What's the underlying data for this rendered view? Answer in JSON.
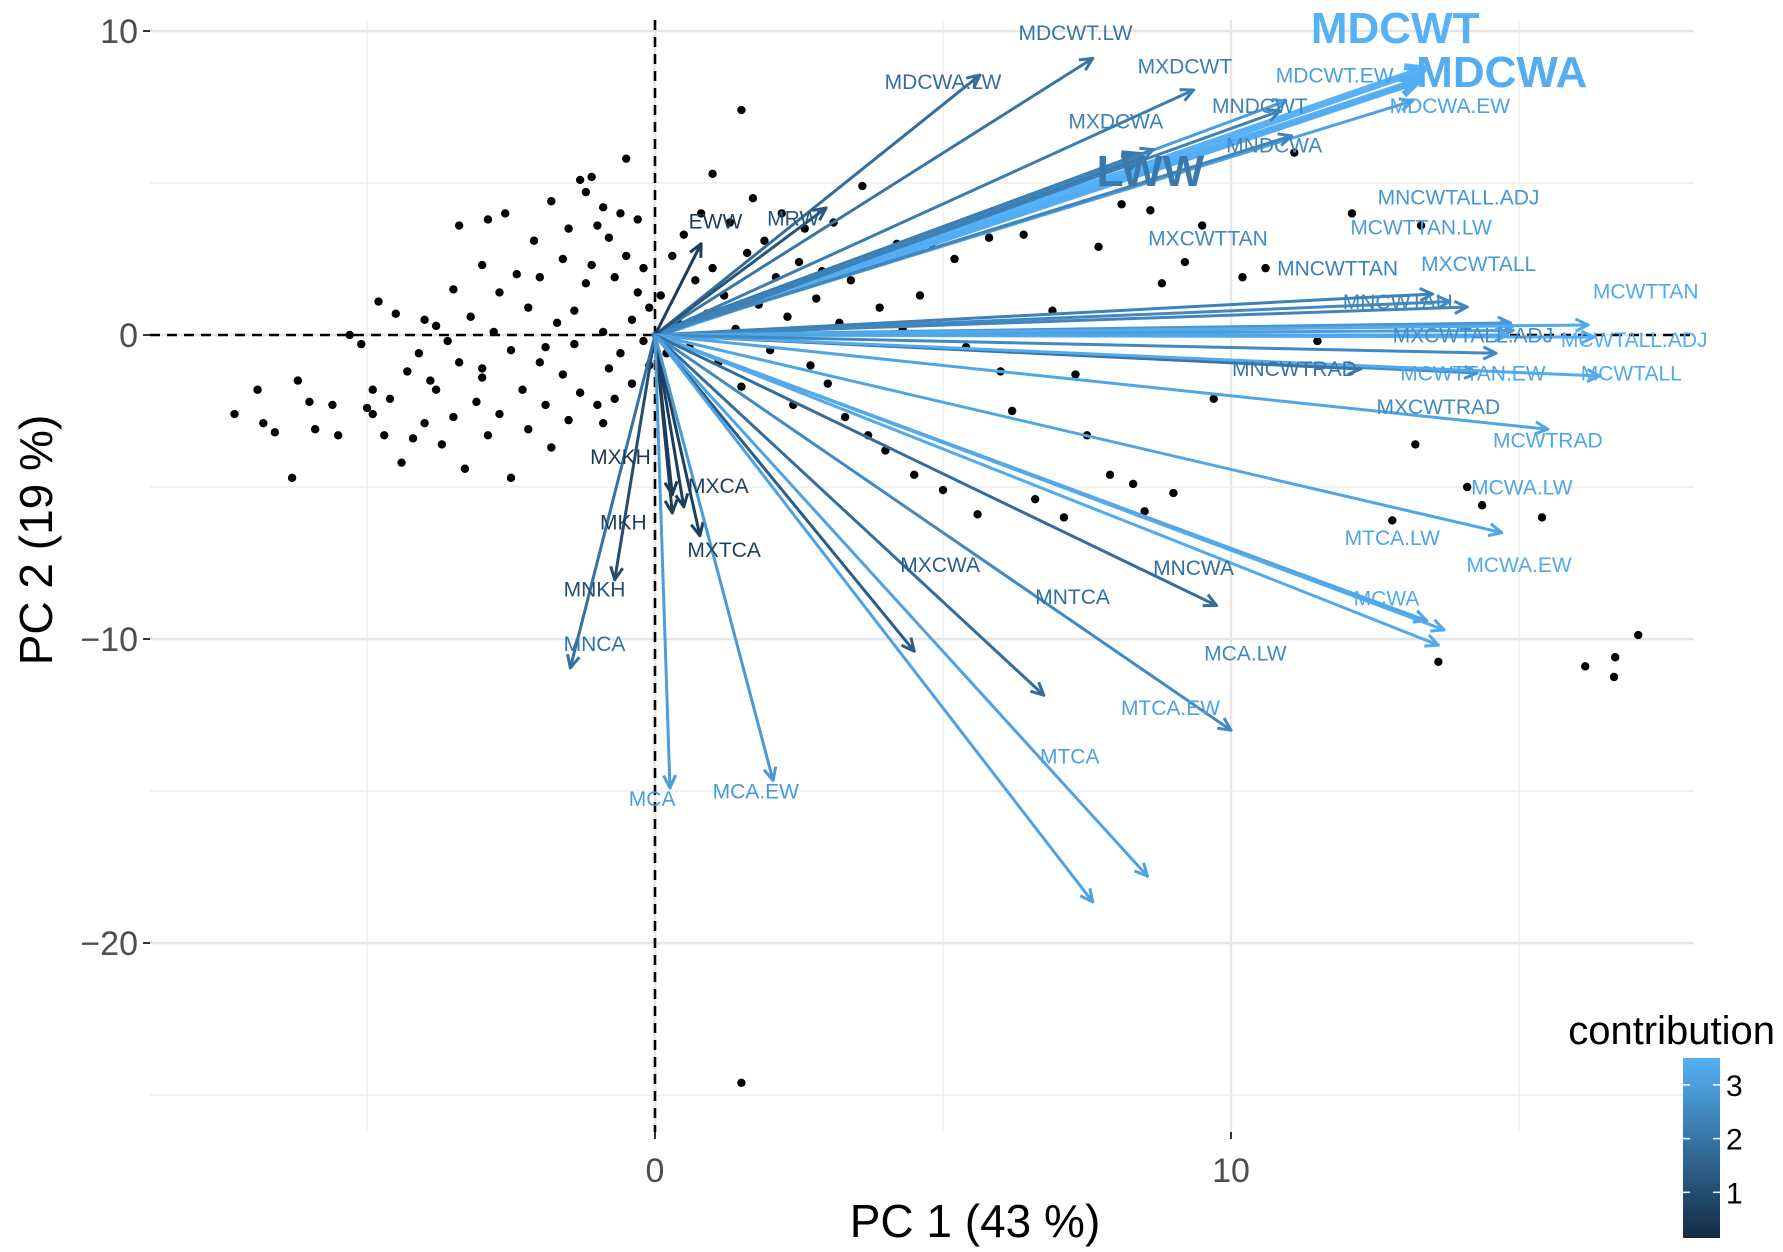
{
  "chart_data": {
    "type": "scatter",
    "subtype": "pca-biplot",
    "title": "",
    "xlabel": "PC 1 (43 %)",
    "ylabel": "PC 2 (19 %)",
    "xlim": [
      -9.5,
      17.6
    ],
    "ylim": [
      -27,
      10.2
    ],
    "xticks": [
      0,
      10
    ],
    "xgrid_minor": [
      -5,
      5,
      15
    ],
    "yticks": [
      -20,
      -10,
      0,
      10
    ],
    "ygrid_minor": [
      -25,
      -15,
      -5,
      5
    ],
    "grid": true,
    "reference_lines": {
      "x": 0,
      "y": 0,
      "style": "dashed"
    },
    "legend": {
      "title": "contribution",
      "placement": "bottom-right",
      "type": "colorbar",
      "range": [
        0.15,
        3.5
      ],
      "ticks": [
        1,
        2,
        3
      ],
      "color_low": "#132B43",
      "color_high": "#56B1F7"
    },
    "variables": [
      {
        "name": "MDCWT",
        "x": 13.35,
        "y": 8.75,
        "contribution": 3.5,
        "big": true
      },
      {
        "name": "MDCWA",
        "x": 13.25,
        "y": 8.36,
        "contribution": 3.4,
        "big": true
      },
      {
        "name": "LWW",
        "x": 8.44,
        "y": 5.9,
        "contribution": 2.1,
        "big": true
      },
      {
        "name": "MDCWT.EW",
        "x": 10.95,
        "y": 7.7,
        "contribution": 3.0
      },
      {
        "name": "MDCWA.EW",
        "x": 13.15,
        "y": 7.7,
        "contribution": 3.1
      },
      {
        "name": "MDCWT.LW",
        "x": 7.6,
        "y": 9.1,
        "contribution": 2.0
      },
      {
        "name": "MDCWA.LW",
        "x": 5.64,
        "y": 8.55,
        "contribution": 1.8
      },
      {
        "name": "MXDCWT",
        "x": 9.35,
        "y": 8.06,
        "contribution": 2.2
      },
      {
        "name": "MXDCWA",
        "x": 8.65,
        "y": 6.1,
        "contribution": 2.3
      },
      {
        "name": "MNDCWT",
        "x": 10.85,
        "y": 7.37,
        "contribution": 2.3
      },
      {
        "name": "MNDCWA",
        "x": 11.05,
        "y": 6.55,
        "contribution": 2.4
      },
      {
        "name": "MRW",
        "x": 2.97,
        "y": 4.18,
        "contribution": 1.2
      },
      {
        "name": "EWW",
        "x": 0.8,
        "y": 3.0,
        "contribution": 0.6
      },
      {
        "name": "MNCWTALL.ADJ",
        "x": 14.85,
        "y": 0.4,
        "contribution": 2.8
      },
      {
        "name": "MCWTTAN.LW",
        "x": 14.9,
        "y": 0.15,
        "contribution": 3.0
      },
      {
        "name": "MXCWTTAN",
        "x": 13.8,
        "y": 1.1,
        "contribution": 2.5
      },
      {
        "name": "MNCWTTAN",
        "x": 13.5,
        "y": 1.35,
        "contribution": 2.3
      },
      {
        "name": "MXCWTALL",
        "x": 14.9,
        "y": 0.3,
        "contribution": 2.9
      },
      {
        "name": "MNCWTALL",
        "x": 14.1,
        "y": 0.92,
        "contribution": 2.4
      },
      {
        "name": "MCWTTAN",
        "x": 16.2,
        "y": 0.33,
        "contribution": 3.3
      },
      {
        "name": "MXCWTALL.ADJ",
        "x": 14.27,
        "y": -1.25,
        "contribution": 2.6
      },
      {
        "name": "MCWTALL.ADJ",
        "x": 16.3,
        "y": -0.07,
        "contribution": 3.4
      },
      {
        "name": "MNCWTRAD",
        "x": 12.25,
        "y": -1.12,
        "contribution": 2.0
      },
      {
        "name": "MCWTTAN.EW",
        "x": 14.8,
        "y": 0.0,
        "contribution": 3.2
      },
      {
        "name": "MCWTALL",
        "x": 16.4,
        "y": -1.35,
        "contribution": 3.3
      },
      {
        "name": "MXCWTRAD",
        "x": 14.6,
        "y": -0.6,
        "contribution": 2.5
      },
      {
        "name": "MCWTRAD",
        "x": 15.5,
        "y": -3.1,
        "contribution": 3.2
      },
      {
        "name": "MCWA.LW",
        "x": 14.7,
        "y": -6.5,
        "contribution": 3.2
      },
      {
        "name": "MTCA.LW",
        "x": 13.4,
        "y": -9.4,
        "contribution": 3.2
      },
      {
        "name": "MCWA.EW",
        "x": 13.7,
        "y": -9.7,
        "contribution": 3.3
      },
      {
        "name": "MCWA",
        "x": 13.6,
        "y": -10.2,
        "contribution": 3.3
      },
      {
        "name": "MNCWA",
        "x": 9.75,
        "y": -8.9,
        "contribution": 1.8
      },
      {
        "name": "MXCWA",
        "x": 4.5,
        "y": -10.4,
        "contribution": 1.4
      },
      {
        "name": "MNTCA",
        "x": 6.75,
        "y": -11.85,
        "contribution": 1.8
      },
      {
        "name": "MCA.LW",
        "x": 10.0,
        "y": -13.0,
        "contribution": 2.5
      },
      {
        "name": "MTCA.EW",
        "x": 8.55,
        "y": -17.8,
        "contribution": 3.1
      },
      {
        "name": "MTCA",
        "x": 7.6,
        "y": -18.65,
        "contribution": 3.1
      },
      {
        "name": "MXKH",
        "x": 0.3,
        "y": -5.25,
        "contribution": 0.5
      },
      {
        "name": "MXCA",
        "x": 0.5,
        "y": -5.65,
        "contribution": 0.6
      },
      {
        "name": "MKH",
        "x": 0.3,
        "y": -5.85,
        "contribution": 0.6
      },
      {
        "name": "MXTCA",
        "x": 0.78,
        "y": -6.6,
        "contribution": 0.7
      },
      {
        "name": "MNKH",
        "x": -0.7,
        "y": -8.05,
        "contribution": 1.0
      },
      {
        "name": "MNCA",
        "x": -1.47,
        "y": -10.95,
        "contribution": 1.9
      },
      {
        "name": "MCA",
        "x": 0.26,
        "y": -14.9,
        "contribution": 3.0
      },
      {
        "name": "MCA.EW",
        "x": 2.05,
        "y": -14.65,
        "contribution": 2.9
      }
    ],
    "labels": [
      {
        "name": "MDCWT",
        "x": 12.85,
        "y": 9.6
      },
      {
        "name": "MDCWA",
        "x": 14.7,
        "y": 8.15
      },
      {
        "name": "LWW",
        "x": 8.6,
        "y": 4.9
      },
      {
        "name": "MDCWT.EW",
        "x": 11.8,
        "y": 8.3
      },
      {
        "name": "MDCWA.EW",
        "x": 13.8,
        "y": 7.3
      },
      {
        "name": "MDCWT.LW",
        "x": 7.3,
        "y": 9.7
      },
      {
        "name": "MDCWA.LW",
        "x": 5.0,
        "y": 8.1
      },
      {
        "name": "MXDCWT",
        "x": 9.2,
        "y": 8.6
      },
      {
        "name": "MXDCWA",
        "x": 8.0,
        "y": 6.8
      },
      {
        "name": "MNDCWT",
        "x": 10.5,
        "y": 7.3
      },
      {
        "name": "MNDCWA",
        "x": 10.75,
        "y": 6.0
      },
      {
        "name": "MRW",
        "x": 2.4,
        "y": 3.6
      },
      {
        "name": "EWW",
        "x": 1.05,
        "y": 3.5
      },
      {
        "name": "MNCWTALL.ADJ",
        "x": 13.95,
        "y": 4.3
      },
      {
        "name": "MCWTTAN.LW",
        "x": 13.3,
        "y": 3.3
      },
      {
        "name": "MXCWTTAN",
        "x": 9.6,
        "y": 2.95
      },
      {
        "name": "MNCWTTAN",
        "x": 11.85,
        "y": 1.95
      },
      {
        "name": "MXCWTALL",
        "x": 14.3,
        "y": 2.1
      },
      {
        "name": "MNCWTALL",
        "x": 12.95,
        "y": 0.85
      },
      {
        "name": "MCWTTAN",
        "x": 17.2,
        "y": 1.2
      },
      {
        "name": "MXCWTALL.ADJ",
        "x": 14.2,
        "y": -0.25
      },
      {
        "name": "MCWTALL.ADJ",
        "x": 17.0,
        "y": -0.4
      },
      {
        "name": "MNCWTRAD",
        "x": 11.1,
        "y": -1.35
      },
      {
        "name": "MCWTTAN.EW",
        "x": 14.2,
        "y": -1.5
      },
      {
        "name": "MCWTALL",
        "x": 16.95,
        "y": -1.5
      },
      {
        "name": "MXCWTRAD",
        "x": 13.6,
        "y": -2.6
      },
      {
        "name": "MCWTRAD",
        "x": 15.5,
        "y": -3.7
      },
      {
        "name": "MCWA.LW",
        "x": 15.05,
        "y": -5.25
      },
      {
        "name": "MTCA.LW",
        "x": 12.8,
        "y": -6.9
      },
      {
        "name": "MCWA.EW",
        "x": 15.0,
        "y": -7.8
      },
      {
        "name": "MCWA",
        "x": 12.7,
        "y": -8.9
      },
      {
        "name": "MNCWA",
        "x": 9.35,
        "y": -7.9
      },
      {
        "name": "MXCWA",
        "x": 4.95,
        "y": -7.8
      },
      {
        "name": "MNTCA",
        "x": 7.25,
        "y": -8.85
      },
      {
        "name": "MCA.LW",
        "x": 10.25,
        "y": -10.7
      },
      {
        "name": "MTCA.EW",
        "x": 8.95,
        "y": -12.5
      },
      {
        "name": "MTCA",
        "x": 7.2,
        "y": -14.1
      },
      {
        "name": "MXKH",
        "x": -0.6,
        "y": -4.25
      },
      {
        "name": "MXCA",
        "x": 1.1,
        "y": -5.2
      },
      {
        "name": "MKH",
        "x": -0.55,
        "y": -6.4
      },
      {
        "name": "MXTCA",
        "x": 1.2,
        "y": -7.3
      },
      {
        "name": "MNKH",
        "x": -1.05,
        "y": -8.6
      },
      {
        "name": "MNCA",
        "x": -1.05,
        "y": -10.4
      },
      {
        "name": "MCA",
        "x": -0.05,
        "y": -15.5
      },
      {
        "name": "MCA.EW",
        "x": 1.75,
        "y": -15.25
      }
    ],
    "points": [
      [
        -7.3,
        -2.6
      ],
      [
        -6.9,
        -1.8
      ],
      [
        -6.8,
        -2.9
      ],
      [
        -6.6,
        -3.2
      ],
      [
        -6.3,
        -4.7
      ],
      [
        -6.2,
        -1.5
      ],
      [
        -6.0,
        -2.2
      ],
      [
        -5.9,
        -3.1
      ],
      [
        -5.6,
        -2.3
      ],
      [
        -5.5,
        -3.3
      ],
      [
        -5.3,
        0.0
      ],
      [
        -5.1,
        -0.3
      ],
      [
        -5.0,
        -2.4
      ],
      [
        -4.9,
        -1.8
      ],
      [
        -4.9,
        -2.6
      ],
      [
        -4.8,
        1.1
      ],
      [
        -4.7,
        -3.3
      ],
      [
        -4.6,
        -2.1
      ],
      [
        -4.5,
        0.7
      ],
      [
        -4.4,
        -4.2
      ],
      [
        -4.3,
        -1.2
      ],
      [
        -4.2,
        -3.4
      ],
      [
        -4.1,
        -0.6
      ],
      [
        -4.0,
        0.5
      ],
      [
        -4.0,
        -2.9
      ],
      [
        -3.9,
        -1.5
      ],
      [
        -3.8,
        0.3
      ],
      [
        -3.8,
        -1.8
      ],
      [
        -3.7,
        -3.6
      ],
      [
        -3.6,
        -0.2
      ],
      [
        -3.5,
        1.5
      ],
      [
        -3.5,
        -2.7
      ],
      [
        -3.4,
        3.6
      ],
      [
        -3.4,
        -0.9
      ],
      [
        -3.3,
        -4.4
      ],
      [
        -3.2,
        0.6
      ],
      [
        -3.1,
        -2.2
      ],
      [
        -3.0,
        2.3
      ],
      [
        -3.0,
        -1.4
      ],
      [
        -2.9,
        3.8
      ],
      [
        -2.9,
        -3.3
      ],
      [
        -2.8,
        0.1
      ],
      [
        -2.7,
        1.4
      ],
      [
        -2.7,
        -2.6
      ],
      [
        -2.6,
        4.0
      ],
      [
        -2.5,
        -0.5
      ],
      [
        -2.5,
        -4.7
      ],
      [
        -2.4,
        2.0
      ],
      [
        -2.3,
        -1.8
      ],
      [
        -2.2,
        0.9
      ],
      [
        -2.2,
        -3.1
      ],
      [
        -2.1,
        3.1
      ],
      [
        -2.0,
        -0.9
      ],
      [
        -2.0,
        1.9
      ],
      [
        -1.9,
        -2.3
      ],
      [
        -1.8,
        4.4
      ],
      [
        -1.8,
        -3.7
      ],
      [
        -1.7,
        0.4
      ],
      [
        -1.6,
        2.5
      ],
      [
        -1.6,
        -1.3
      ],
      [
        -1.5,
        -2.8
      ],
      [
        -1.5,
        3.5
      ],
      [
        -1.4,
        0.8
      ],
      [
        -1.4,
        -0.3
      ],
      [
        -1.3,
        5.1
      ],
      [
        -1.3,
        -1.9
      ],
      [
        -1.2,
        4.7
      ],
      [
        -1.2,
        1.7
      ],
      [
        -1.1,
        5.2
      ],
      [
        -1.1,
        2.3
      ],
      [
        -1.0,
        -2.3
      ],
      [
        -1.0,
        3.6
      ],
      [
        -0.9,
        4.2
      ],
      [
        -0.9,
        0.1
      ],
      [
        -0.8,
        -1.1
      ],
      [
        -0.8,
        3.2
      ],
      [
        -0.7,
        1.9
      ],
      [
        -0.7,
        -2.1
      ],
      [
        -0.6,
        4.0
      ],
      [
        -0.6,
        -0.6
      ],
      [
        -0.5,
        2.6
      ],
      [
        -0.5,
        5.8
      ],
      [
        -0.4,
        0.5
      ],
      [
        -0.4,
        -1.6
      ],
      [
        -0.3,
        3.8
      ],
      [
        -0.3,
        1.4
      ],
      [
        -0.2,
        -0.2
      ],
      [
        -0.2,
        2.2
      ],
      [
        -0.1,
        0.9
      ],
      [
        -0.1,
        -1.0
      ],
      [
        0.1,
        1.3
      ],
      [
        0.2,
        -0.6
      ],
      [
        0.3,
        2.6
      ],
      [
        0.4,
        0.4
      ],
      [
        0.5,
        3.3
      ],
      [
        0.6,
        -0.4
      ],
      [
        0.7,
        1.8
      ],
      [
        0.8,
        4.0
      ],
      [
        0.9,
        0.7
      ],
      [
        1.0,
        5.3
      ],
      [
        1.0,
        2.2
      ],
      [
        1.1,
        -0.9
      ],
      [
        1.2,
        1.3
      ],
      [
        1.3,
        3.7
      ],
      [
        1.4,
        0.2
      ],
      [
        1.5,
        7.4
      ],
      [
        1.5,
        -1.7
      ],
      [
        1.6,
        2.7
      ],
      [
        1.7,
        4.5
      ],
      [
        1.8,
        1.0
      ],
      [
        1.9,
        3.1
      ],
      [
        2.0,
        -0.5
      ],
      [
        2.1,
        1.9
      ],
      [
        2.2,
        4.0
      ],
      [
        2.3,
        0.6
      ],
      [
        2.4,
        -2.3
      ],
      [
        2.5,
        2.4
      ],
      [
        2.6,
        3.5
      ],
      [
        2.7,
        -1.0
      ],
      [
        2.8,
        1.2
      ],
      [
        2.9,
        2.1
      ],
      [
        3.0,
        -1.6
      ],
      [
        3.1,
        3.7
      ],
      [
        3.2,
        0.4
      ],
      [
        3.3,
        -2.7
      ],
      [
        3.4,
        1.8
      ],
      [
        3.6,
        4.9
      ],
      [
        3.7,
        -3.3
      ],
      [
        3.8,
        2.4
      ],
      [
        3.9,
        0.9
      ],
      [
        4.0,
        -3.8
      ],
      [
        4.2,
        3.0
      ],
      [
        4.3,
        0.2
      ],
      [
        4.5,
        -4.6
      ],
      [
        4.6,
        1.3
      ],
      [
        4.8,
        3.0
      ],
      [
        5.0,
        -5.1
      ],
      [
        5.2,
        2.5
      ],
      [
        5.4,
        -0.4
      ],
      [
        5.6,
        -5.9
      ],
      [
        5.8,
        3.2
      ],
      [
        6.0,
        -1.2
      ],
      [
        6.2,
        -2.5
      ],
      [
        6.4,
        3.3
      ],
      [
        6.6,
        -5.4
      ],
      [
        6.9,
        0.8
      ],
      [
        7.1,
        -6.0
      ],
      [
        7.3,
        -1.3
      ],
      [
        7.5,
        -3.3
      ],
      [
        7.7,
        2.9
      ],
      [
        7.9,
        -4.6
      ],
      [
        8.1,
        4.3
      ],
      [
        8.3,
        -4.9
      ],
      [
        8.5,
        -5.8
      ],
      [
        8.6,
        4.1
      ],
      [
        8.8,
        1.7
      ],
      [
        9.0,
        -5.2
      ],
      [
        9.2,
        2.4
      ],
      [
        9.5,
        3.6
      ],
      [
        9.7,
        -2.1
      ],
      [
        10.2,
        1.9
      ],
      [
        10.6,
        2.2
      ],
      [
        11.1,
        6.0
      ],
      [
        11.5,
        -0.2
      ],
      [
        12.1,
        4.0
      ],
      [
        13.3,
        3.6
      ],
      [
        13.6,
        -10.75
      ],
      [
        14.36,
        -5.6
      ],
      [
        15.4,
        -6.0
      ],
      [
        16.15,
        -10.9
      ],
      [
        16.65,
        -11.25
      ],
      [
        16.67,
        -10.6
      ],
      [
        17.07,
        -9.87
      ],
      [
        12.8,
        -6.1
      ],
      [
        13.2,
        -3.6
      ],
      [
        14.1,
        -5.0
      ],
      [
        1.5,
        -24.6
      ],
      [
        -3.0,
        -1.1
      ],
      [
        -1.9,
        -0.4
      ],
      [
        -0.9,
        -2.9
      ]
    ]
  }
}
